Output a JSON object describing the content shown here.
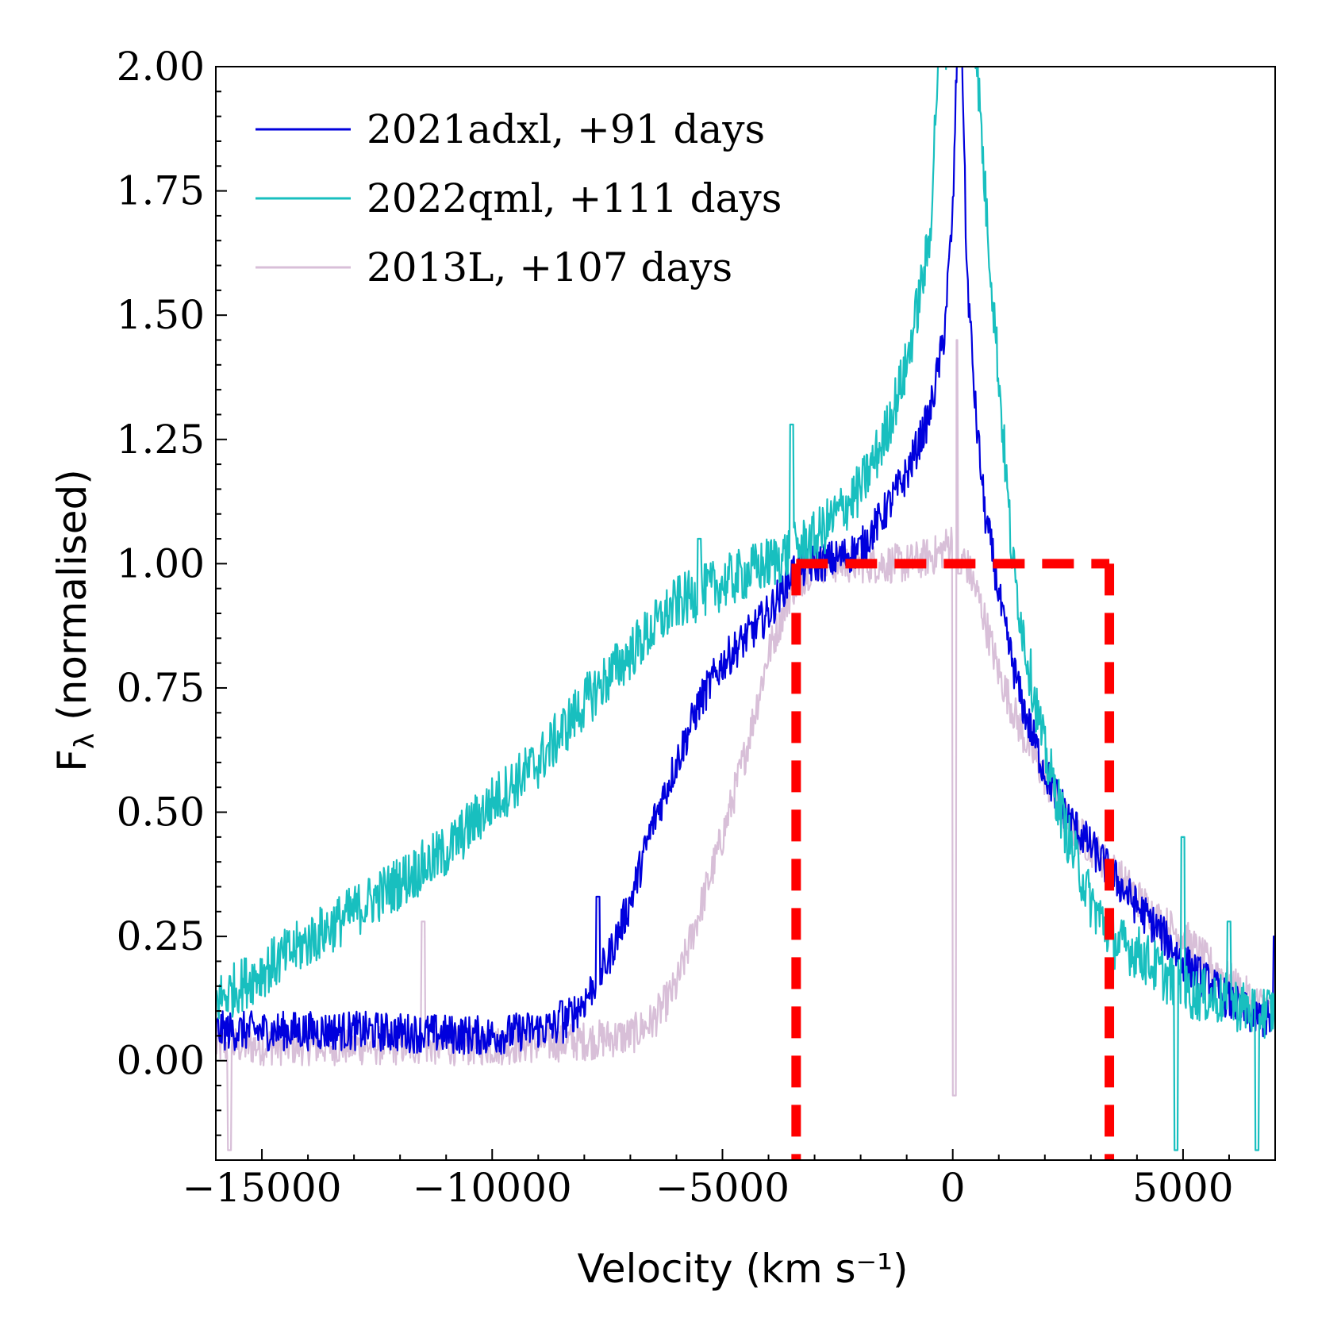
{
  "chart_data": {
    "type": "line",
    "xlabel": "Velocity (km s⁻¹)",
    "ylabel_main": "F",
    "ylabel_sub": "λ",
    "ylabel_rest": " (normalised)",
    "xlim": [
      -16000,
      7000
    ],
    "ylim": [
      -0.2,
      2.0
    ],
    "x_ticks": [
      -15000,
      -10000,
      -5000,
      0,
      5000
    ],
    "x_tick_labels": [
      "−15000",
      "−10000",
      "−5000",
      "0",
      "5000"
    ],
    "y_ticks": [
      0.0,
      0.25,
      0.5,
      0.75,
      1.0,
      1.25,
      1.5,
      1.75,
      2.0
    ],
    "y_tick_labels": [
      "0.00",
      "0.25",
      "0.50",
      "0.75",
      "1.00",
      "1.25",
      "1.50",
      "1.75",
      "2.00"
    ],
    "series": [
      {
        "name": "2013L, +107 days",
        "color": "#d8bfd8",
        "noise": 0.04,
        "points": [
          [
            -16000,
            0.03
          ],
          [
            -13000,
            0.03
          ],
          [
            -10000,
            0.03
          ],
          [
            -8000,
            0.04
          ],
          [
            -7000,
            0.05
          ],
          [
            -6500,
            0.08
          ],
          [
            -6000,
            0.15
          ],
          [
            -5500,
            0.3
          ],
          [
            -5000,
            0.45
          ],
          [
            -4500,
            0.62
          ],
          [
            -4000,
            0.82
          ],
          [
            -3500,
            0.95
          ],
          [
            -3000,
            1.0
          ],
          [
            -2000,
            1.0
          ],
          [
            -1000,
            1.0
          ],
          [
            -300,
            1.02
          ],
          [
            0,
            1.05
          ],
          [
            300,
            1.0
          ],
          [
            600,
            0.92
          ],
          [
            1000,
            0.78
          ],
          [
            1500,
            0.66
          ],
          [
            2000,
            0.57
          ],
          [
            2500,
            0.48
          ],
          [
            3000,
            0.43
          ],
          [
            3500,
            0.38
          ],
          [
            4000,
            0.33
          ],
          [
            4500,
            0.28
          ],
          [
            5000,
            0.25
          ],
          [
            5500,
            0.2
          ],
          [
            6000,
            0.16
          ],
          [
            6500,
            0.12
          ],
          [
            7000,
            0.1
          ]
        ],
        "spikes": [
          [
            -11500,
            0.28
          ],
          [
            -15700,
            -0.18
          ],
          [
            80,
            1.45
          ],
          [
            40,
            -0.07
          ],
          [
            150,
            0.98
          ]
        ]
      },
      {
        "name": "2021adxl, +91 days",
        "color": "#0000dd",
        "noise": 0.04,
        "points": [
          [
            -16000,
            0.06
          ],
          [
            -13000,
            0.06
          ],
          [
            -10000,
            0.05
          ],
          [
            -8500,
            0.07
          ],
          [
            -8000,
            0.12
          ],
          [
            -7500,
            0.2
          ],
          [
            -7000,
            0.32
          ],
          [
            -6500,
            0.48
          ],
          [
            -6000,
            0.6
          ],
          [
            -5500,
            0.72
          ],
          [
            -5000,
            0.8
          ],
          [
            -4500,
            0.85
          ],
          [
            -4000,
            0.9
          ],
          [
            -3500,
            0.98
          ],
          [
            -3000,
            1.0
          ],
          [
            -2500,
            1.01
          ],
          [
            -2000,
            1.03
          ],
          [
            -1500,
            1.1
          ],
          [
            -1000,
            1.18
          ],
          [
            -500,
            1.3
          ],
          [
            -200,
            1.45
          ],
          [
            0,
            1.7
          ],
          [
            100,
            2.05
          ],
          [
            200,
            2.05
          ],
          [
            300,
            1.6
          ],
          [
            500,
            1.3
          ],
          [
            700,
            1.1
          ],
          [
            900,
            1.0
          ],
          [
            1100,
            0.88
          ],
          [
            1500,
            0.72
          ],
          [
            2000,
            0.58
          ],
          [
            2500,
            0.49
          ],
          [
            3000,
            0.43
          ],
          [
            3500,
            0.37
          ],
          [
            4000,
            0.31
          ],
          [
            4500,
            0.26
          ],
          [
            5000,
            0.2
          ],
          [
            5500,
            0.16
          ],
          [
            6000,
            0.12
          ],
          [
            6500,
            0.09
          ],
          [
            7000,
            0.08
          ]
        ],
        "spikes": [
          [
            7000,
            0.25
          ],
          [
            -8500,
            0.12
          ],
          [
            -7700,
            0.33
          ]
        ]
      },
      {
        "name": "2022qml, +111 days",
        "color": "#18bfbf",
        "noise": 0.055,
        "points": [
          [
            -16000,
            0.12
          ],
          [
            -15000,
            0.18
          ],
          [
            -14000,
            0.24
          ],
          [
            -13000,
            0.3
          ],
          [
            -12000,
            0.36
          ],
          [
            -11000,
            0.42
          ],
          [
            -10000,
            0.52
          ],
          [
            -9000,
            0.6
          ],
          [
            -8000,
            0.72
          ],
          [
            -7000,
            0.82
          ],
          [
            -6000,
            0.92
          ],
          [
            -5000,
            0.96
          ],
          [
            -4000,
            1.0
          ],
          [
            -3000,
            1.05
          ],
          [
            -2000,
            1.15
          ],
          [
            -1500,
            1.25
          ],
          [
            -1000,
            1.4
          ],
          [
            -500,
            1.65
          ],
          [
            -300,
            2.05
          ],
          [
            500,
            2.05
          ],
          [
            700,
            1.75
          ],
          [
            900,
            1.5
          ],
          [
            1100,
            1.25
          ],
          [
            1300,
            1.0
          ],
          [
            1600,
            0.82
          ],
          [
            2000,
            0.62
          ],
          [
            2500,
            0.45
          ],
          [
            3000,
            0.32
          ],
          [
            3500,
            0.24
          ],
          [
            4000,
            0.22
          ],
          [
            4500,
            0.18
          ],
          [
            5000,
            0.14
          ],
          [
            5500,
            0.13
          ],
          [
            6000,
            0.12
          ],
          [
            6500,
            0.1
          ],
          [
            7000,
            0.1
          ]
        ],
        "spikes": [
          [
            4850,
            -0.18
          ],
          [
            6600,
            -0.18
          ],
          [
            -5500,
            1.05
          ],
          [
            -3500,
            1.28
          ],
          [
            5000,
            0.45
          ],
          [
            6000,
            0.28
          ]
        ]
      }
    ],
    "legend": {
      "position": "top-left",
      "entries": [
        {
          "label": "2021adxl, +91 days",
          "color": "#0000dd"
        },
        {
          "label": "2022qml, +111 days",
          "color": "#18bfbf"
        },
        {
          "label": "2013L, +107 days",
          "color": "#d8bfd8"
        }
      ]
    },
    "box": {
      "color": "#ff0000",
      "x_left": -3400,
      "x_right": 3400,
      "y_top": 1.0,
      "style": "dashed"
    }
  }
}
